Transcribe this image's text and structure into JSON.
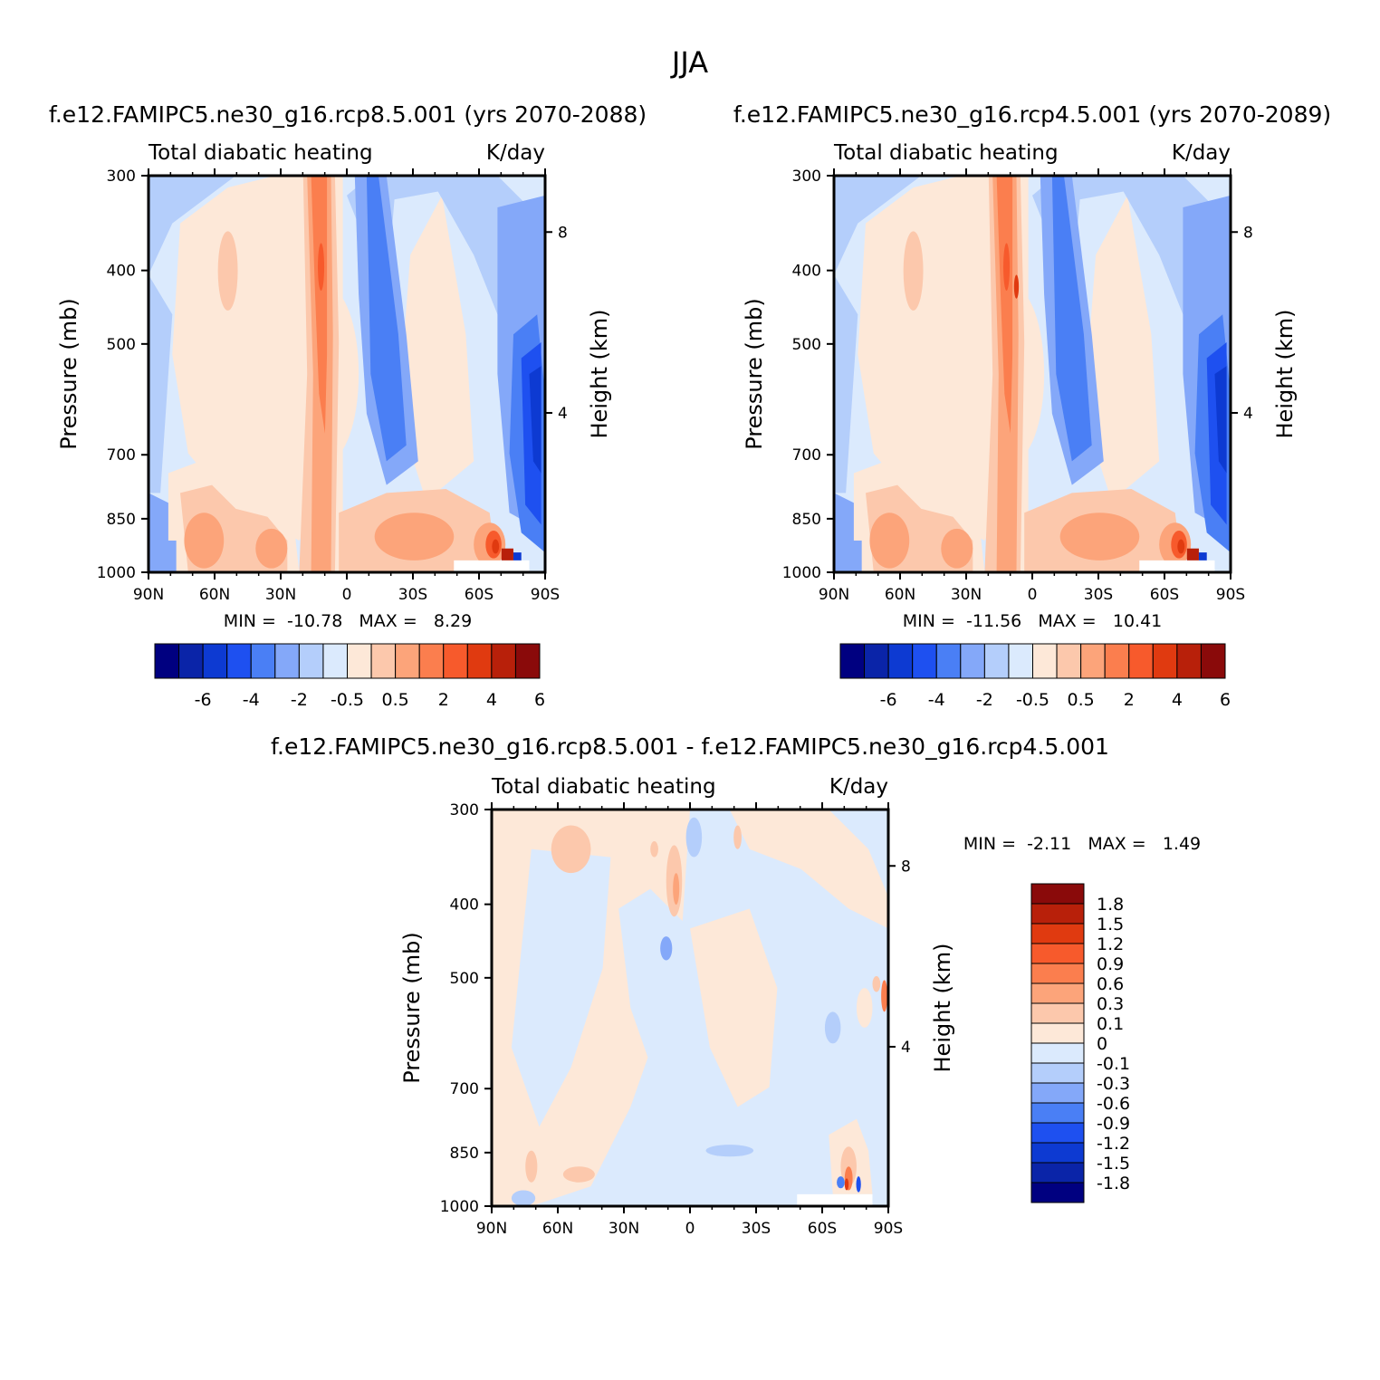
{
  "figure_title": "JJA",
  "chart_data": [
    {
      "id": "left",
      "type": "heatmap",
      "title": "f.e12.FAMIPC5.ne30_g16.rcp8.5.001 (yrs 2070-2088)",
      "variable": "Total diabatic heating",
      "units": "K/day",
      "xlabel": "",
      "ylabel": "Pressure (mb)",
      "ylabel_right": "Height (km)",
      "x_ticks": [
        "90N",
        "60N",
        "30N",
        "0",
        "30S",
        "60S",
        "90S"
      ],
      "y_ticks": [
        300,
        400,
        500,
        700,
        850,
        1000
      ],
      "y_right_ticks": [
        8,
        4
      ],
      "ylim": [
        1000,
        300
      ],
      "min_label": "MIN =",
      "min": "-10.78",
      "max_label": "MAX =",
      "max": "8.29",
      "colorbar_levels": [
        "-6",
        "-4",
        "-2",
        "-0.5",
        "0.5",
        "2",
        "4",
        "6"
      ],
      "colorbar_colors": [
        "#000080",
        "#0a24a8",
        "#0d3ad2",
        "#1e50f0",
        "#4a7ff5",
        "#84a8f9",
        "#b4cefb",
        "#dbeafd",
        "#fde8d8",
        "#fcc8ac",
        "#fca47a",
        "#fb7e4e",
        "#f75a2c",
        "#e03a10",
        "#b8200a",
        "#8a0a0a"
      ]
    },
    {
      "id": "right",
      "type": "heatmap",
      "title": "f.e12.FAMIPC5.ne30_g16.rcp4.5.001 (yrs 2070-2089)",
      "variable": "Total diabatic heating",
      "units": "K/day",
      "xlabel": "",
      "ylabel": "Pressure (mb)",
      "ylabel_right": "Height (km)",
      "x_ticks": [
        "90N",
        "60N",
        "30N",
        "0",
        "30S",
        "60S",
        "90S"
      ],
      "y_ticks": [
        300,
        400,
        500,
        700,
        850,
        1000
      ],
      "y_right_ticks": [
        8,
        4
      ],
      "ylim": [
        1000,
        300
      ],
      "min_label": "MIN =",
      "min": "-11.56",
      "max_label": "MAX =",
      "max": "10.41",
      "colorbar_levels": [
        "-6",
        "-4",
        "-2",
        "-0.5",
        "0.5",
        "2",
        "4",
        "6"
      ],
      "colorbar_colors": [
        "#000080",
        "#0a24a8",
        "#0d3ad2",
        "#1e50f0",
        "#4a7ff5",
        "#84a8f9",
        "#b4cefb",
        "#dbeafd",
        "#fde8d8",
        "#fcc8ac",
        "#fca47a",
        "#fb7e4e",
        "#f75a2c",
        "#e03a10",
        "#b8200a",
        "#8a0a0a"
      ]
    },
    {
      "id": "diff",
      "type": "heatmap",
      "title": "f.e12.FAMIPC5.ne30_g16.rcp8.5.001 - f.e12.FAMIPC5.ne30_g16.rcp4.5.001",
      "variable": "Total diabatic heating",
      "units": "K/day",
      "xlabel": "",
      "ylabel": "Pressure (mb)",
      "ylabel_right": "Height (km)",
      "x_ticks": [
        "90N",
        "60N",
        "30N",
        "0",
        "30S",
        "60S",
        "90S"
      ],
      "y_ticks": [
        300,
        400,
        500,
        700,
        850,
        1000
      ],
      "y_right_ticks": [
        8,
        4
      ],
      "ylim": [
        1000,
        300
      ],
      "min_label": "MIN =",
      "min": "-2.11",
      "max_label": "MAX =",
      "max": "1.49",
      "colorbar_levels": [
        "1.8",
        "1.5",
        "1.2",
        "0.9",
        "0.6",
        "0.3",
        "0.1",
        "0",
        "-0.1",
        "-0.3",
        "-0.6",
        "-0.9",
        "-1.2",
        "-1.5",
        "-1.8"
      ],
      "colorbar_colors": [
        "#8a0a0a",
        "#b8200a",
        "#e03a10",
        "#f75a2c",
        "#fb7e4e",
        "#fca47a",
        "#fcc8ac",
        "#fde8d8",
        "#dbeafd",
        "#b4cefb",
        "#84a8f9",
        "#4a7ff5",
        "#1e50f0",
        "#0d3ad2",
        "#0a24a8",
        "#000080"
      ]
    }
  ]
}
